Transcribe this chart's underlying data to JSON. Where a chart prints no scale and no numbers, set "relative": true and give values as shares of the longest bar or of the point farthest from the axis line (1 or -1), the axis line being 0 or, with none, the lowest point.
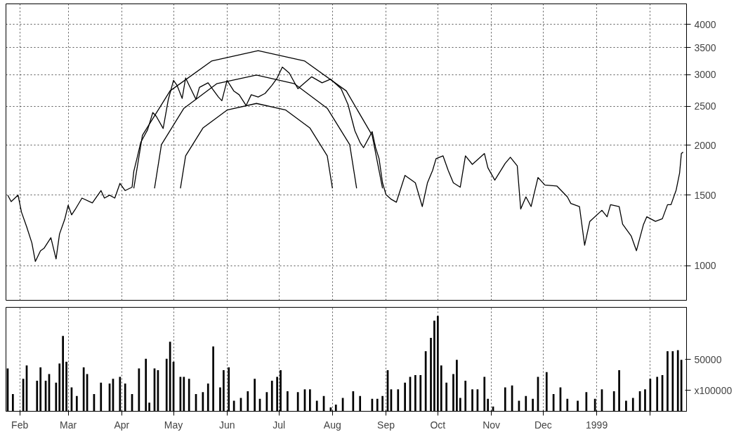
{
  "chart_data": [
    {
      "type": "line",
      "log": "y",
      "grid": true,
      "tick_labels": "y",
      "xlim": [
        "1998-01-24",
        "1999-02-22"
      ],
      "xticks": [
        {
          "value": "1998-02-01",
          "label": null
        },
        {
          "value": "1998-03-01",
          "label": null
        },
        {
          "value": "1998-04-01",
          "label": null
        },
        {
          "value": "1998-05-01",
          "label": null
        },
        {
          "value": "1998-06-01",
          "label": null
        },
        {
          "value": "1998-07-01",
          "label": null
        },
        {
          "value": "1998-08-01",
          "label": null
        },
        {
          "value": "1998-09-01",
          "label": null
        },
        {
          "value": "1998-10-01",
          "label": null
        },
        {
          "value": "1998-11-01",
          "label": null
        },
        {
          "value": "1998-12-01",
          "label": null
        },
        {
          "value": "1999-01-01",
          "label": null
        },
        {
          "value": "1999-02-01",
          "label": null
        }
      ],
      "ylim": [
        820,
        4500
      ],
      "yticks": [
        1000,
        1500,
        2000,
        2500,
        3000,
        3500,
        4000
      ],
      "series": [
        {
          "type": "line",
          "color": "#000000",
          "x": [
            "1998-01-25",
            "1998-01-27",
            "1998-01-31",
            "1998-02-02",
            "1998-02-05",
            "1998-02-08",
            "1998-02-10",
            "1998-02-13",
            "1998-02-15",
            "1998-02-19",
            "1998-02-22",
            "1998-02-24",
            "1998-02-27",
            "1998-03-01",
            "1998-03-03",
            "1998-03-05",
            "1998-03-09",
            "1998-03-15",
            "1998-03-20",
            "1998-03-22",
            "1998-03-25",
            "1998-03-28",
            "1998-03-31",
            "1998-04-03",
            "1998-04-07",
            "1998-04-08",
            "1998-04-10",
            "1998-04-12",
            "1998-04-16",
            "1998-04-19",
            "1998-04-21",
            "1998-04-25",
            "1998-04-28",
            "1998-05-01",
            "1998-05-03",
            "1998-05-06",
            "1998-05-08",
            "1998-05-10",
            "1998-05-14",
            "1998-05-16",
            "1998-05-21",
            "1998-05-24",
            "1998-05-27",
            "1998-05-29",
            "1998-06-01",
            "1998-06-05",
            "1998-06-08",
            "1998-06-12",
            "1998-06-15",
            "1998-06-19",
            "1998-06-23",
            "1998-06-27",
            "1998-06-30",
            "1998-07-03",
            "1998-07-07",
            "1998-07-12",
            "1998-07-16",
            "1998-07-20",
            "1998-07-26",
            "1998-07-31",
            "1998-08-03",
            "1998-08-06",
            "1998-08-10",
            "1998-08-14",
            "1998-08-17",
            "1998-08-19",
            "1998-08-24",
            "1998-08-26",
            "1998-08-28",
            "1998-08-30",
            "1998-09-01",
            "1998-09-04",
            "1998-09-07",
            "1998-09-12",
            "1998-09-18",
            "1998-09-22",
            "1998-09-25",
            "1998-09-28",
            "1998-09-30",
            "1998-10-04",
            "1998-10-07",
            "1998-10-10",
            "1998-10-14",
            "1998-10-17",
            "1998-10-21",
            "1998-10-28",
            "1998-10-30",
            "1998-11-03",
            "1998-11-09",
            "1998-11-12",
            "1998-11-16",
            "1998-11-18",
            "1998-11-21",
            "1998-11-24",
            "1998-11-28",
            "1998-12-02",
            "1998-12-09",
            "1998-12-15",
            "1998-12-17",
            "1998-12-22",
            "1998-12-25",
            "1998-12-28",
            "1999-01-04",
            "1999-01-07",
            "1999-01-09",
            "1999-01-14",
            "1999-01-16",
            "1999-01-21",
            "1999-01-24",
            "1999-01-28",
            "1999-01-30",
            "1999-02-04",
            "1999-02-08",
            "1999-02-11",
            "1999-02-13",
            "1999-02-16",
            "1999-02-18",
            "1999-02-19",
            "1999-02-20"
          ],
          "values": [
            1500,
            1445,
            1500,
            1360,
            1250,
            1140,
            1025,
            1090,
            1105,
            1175,
            1040,
            1200,
            1305,
            1415,
            1340,
            1380,
            1475,
            1435,
            1540,
            1475,
            1500,
            1475,
            1605,
            1540,
            1570,
            1720,
            1865,
            2030,
            2185,
            2410,
            2360,
            2200,
            2600,
            2900,
            2820,
            2615,
            2940,
            2820,
            2600,
            2785,
            2860,
            2745,
            2635,
            2580,
            2900,
            2725,
            2670,
            2510,
            2670,
            2635,
            2690,
            2820,
            2940,
            3130,
            3025,
            2765,
            2860,
            2960,
            2860,
            2920,
            2840,
            2765,
            2525,
            2170,
            2030,
            1970,
            2160,
            1970,
            1850,
            1610,
            1505,
            1465,
            1440,
            1680,
            1610,
            1405,
            1610,
            1730,
            1850,
            1880,
            1730,
            1610,
            1570,
            1880,
            1790,
            1905,
            1755,
            1635,
            1800,
            1865,
            1775,
            1385,
            1485,
            1405,
            1660,
            1590,
            1580,
            1485,
            1430,
            1405,
            1125,
            1290,
            1375,
            1325,
            1420,
            1405,
            1270,
            1185,
            1090,
            1265,
            1325,
            1290,
            1310,
            1420,
            1420,
            1545,
            1705,
            1905,
            1920
          ]
        },
        {
          "type": "line",
          "color": "#000000",
          "x": [
            "1998-04-08",
            "1998-04-13",
            "1998-04-29",
            "1998-05-23",
            "1998-06-19",
            "1998-07-16",
            "1998-08-09",
            "1998-08-24",
            "1998-08-30"
          ],
          "values": [
            1560,
            2115,
            2730,
            3240,
            3440,
            3240,
            2730,
            2115,
            1560
          ]
        },
        {
          "type": "line",
          "color": "#000000",
          "x": [
            "1998-04-20",
            "1998-04-24",
            "1998-05-07",
            "1998-05-26",
            "1998-06-18",
            "1998-07-10",
            "1998-07-29",
            "1998-08-11",
            "1998-08-15"
          ],
          "values": [
            1560,
            2005,
            2470,
            2845,
            2990,
            2845,
            2470,
            2005,
            1560
          ]
        },
        {
          "type": "line",
          "color": "#000000",
          "x": [
            "1998-05-05",
            "1998-05-08",
            "1998-05-18",
            "1998-06-01",
            "1998-06-18",
            "1998-07-05",
            "1998-07-19",
            "1998-07-29",
            "1998-08-01"
          ],
          "values": [
            1560,
            1880,
            2205,
            2445,
            2540,
            2445,
            2205,
            1880,
            1560
          ]
        }
      ]
    },
    {
      "type": "bar",
      "relative": true,
      "grid": "x",
      "tick_labels": "x",
      "color": "#000000",
      "xlim": [
        "1998-01-24",
        "1999-02-22"
      ],
      "xticks": [
        {
          "value": "1998-02-01",
          "label": "Feb"
        },
        {
          "value": "1998-03-01",
          "label": "Mar"
        },
        {
          "value": "1998-04-01",
          "label": "Apr"
        },
        {
          "value": "1998-05-01",
          "label": "May"
        },
        {
          "value": "1998-06-01",
          "label": "Jun"
        },
        {
          "value": "1998-07-01",
          "label": "Jul"
        },
        {
          "value": "1998-08-01",
          "label": "Aug"
        },
        {
          "value": "1998-09-01",
          "label": "Sep"
        },
        {
          "value": "1998-10-01",
          "label": "Oct"
        },
        {
          "value": "1998-11-01",
          "label": "Nov"
        },
        {
          "value": "1998-12-01",
          "label": "Dec"
        },
        {
          "value": "1999-01-01",
          "label": "1999"
        },
        {
          "value": "1999-02-01",
          "label": null
        }
      ],
      "annotations": [
        "50000",
        "x100000"
      ],
      "x": [
        "1998-01-25",
        "1998-01-28",
        "1998-02-03",
        "1998-02-05",
        "1998-02-11",
        "1998-02-13",
        "1998-02-16",
        "1998-02-18",
        "1998-02-22",
        "1998-02-24",
        "1998-02-26",
        "1998-02-28",
        "1998-03-03",
        "1998-03-06",
        "1998-03-10",
        "1998-03-12",
        "1998-03-16",
        "1998-03-20",
        "1998-03-25",
        "1998-03-27",
        "1998-03-31",
        "1998-04-03",
        "1998-04-07",
        "1998-04-11",
        "1998-04-15",
        "1998-04-17",
        "1998-04-20",
        "1998-04-22",
        "1998-04-27",
        "1998-04-29",
        "1998-05-01",
        "1998-05-05",
        "1998-05-07",
        "1998-05-10",
        "1998-05-14",
        "1998-05-18",
        "1998-05-21",
        "1998-05-24",
        "1998-05-28",
        "1998-05-30",
        "1998-06-02",
        "1998-06-05",
        "1998-06-09",
        "1998-06-13",
        "1998-06-17",
        "1998-06-20",
        "1998-06-24",
        "1998-06-27",
        "1998-06-30",
        "1998-07-02",
        "1998-07-06",
        "1998-07-12",
        "1998-07-16",
        "1998-07-19",
        "1998-07-23",
        "1998-07-27",
        "1998-07-31",
        "1998-08-03",
        "1998-08-07",
        "1998-08-13",
        "1998-08-17",
        "1998-08-24",
        "1998-08-27",
        "1998-08-30",
        "1998-09-02",
        "1998-09-04",
        "1998-09-08",
        "1998-09-12",
        "1998-09-15",
        "1998-09-18",
        "1998-09-21",
        "1998-09-24",
        "1998-09-27",
        "1998-09-29",
        "1998-10-01",
        "1998-10-03",
        "1998-10-06",
        "1998-10-10",
        "1998-10-12",
        "1998-10-14",
        "1998-10-17",
        "1998-10-21",
        "1998-10-24",
        "1998-10-28",
        "1998-10-30",
        "1998-11-02",
        "1998-11-09",
        "1998-11-13",
        "1998-11-17",
        "1998-11-21",
        "1998-11-25",
        "1998-11-28",
        "1998-12-03",
        "1998-12-07",
        "1998-12-11",
        "1998-12-15",
        "1998-12-21",
        "1998-12-26",
        "1998-12-31",
        "1999-01-04",
        "1999-01-11",
        "1999-01-14",
        "1999-01-18",
        "1999-01-22",
        "1999-01-26",
        "1999-01-29",
        "1999-02-01",
        "1999-02-05",
        "1999-02-08",
        "1999-02-11",
        "1999-02-14",
        "1999-02-17",
        "1999-02-19"
      ],
      "values": [
        0.45,
        0.18,
        0.34,
        0.48,
        0.32,
        0.46,
        0.32,
        0.39,
        0.3,
        0.5,
        0.79,
        0.52,
        0.25,
        0.16,
        0.46,
        0.39,
        0.18,
        0.3,
        0.29,
        0.34,
        0.36,
        0.29,
        0.18,
        0.45,
        0.55,
        0.09,
        0.45,
        0.43,
        0.55,
        0.73,
        0.52,
        0.36,
        0.36,
        0.34,
        0.18,
        0.2,
        0.29,
        0.68,
        0.25,
        0.43,
        0.46,
        0.11,
        0.14,
        0.21,
        0.34,
        0.13,
        0.2,
        0.32,
        0.36,
        0.43,
        0.21,
        0.2,
        0.23,
        0.23,
        0.11,
        0.16,
        0.04,
        0.07,
        0.14,
        0.21,
        0.16,
        0.13,
        0.13,
        0.16,
        0.43,
        0.23,
        0.23,
        0.3,
        0.36,
        0.38,
        0.38,
        0.63,
        0.77,
        0.95,
        1.0,
        0.48,
        0.3,
        0.39,
        0.54,
        0.14,
        0.32,
        0.23,
        0.23,
        0.36,
        0.13,
        0.05,
        0.25,
        0.27,
        0.11,
        0.16,
        0.13,
        0.36,
        0.41,
        0.18,
        0.25,
        0.13,
        0.11,
        0.2,
        0.13,
        0.23,
        0.21,
        0.43,
        0.11,
        0.14,
        0.21,
        0.23,
        0.34,
        0.36,
        0.38,
        0.63,
        0.63,
        0.64,
        0.54
      ]
    }
  ]
}
